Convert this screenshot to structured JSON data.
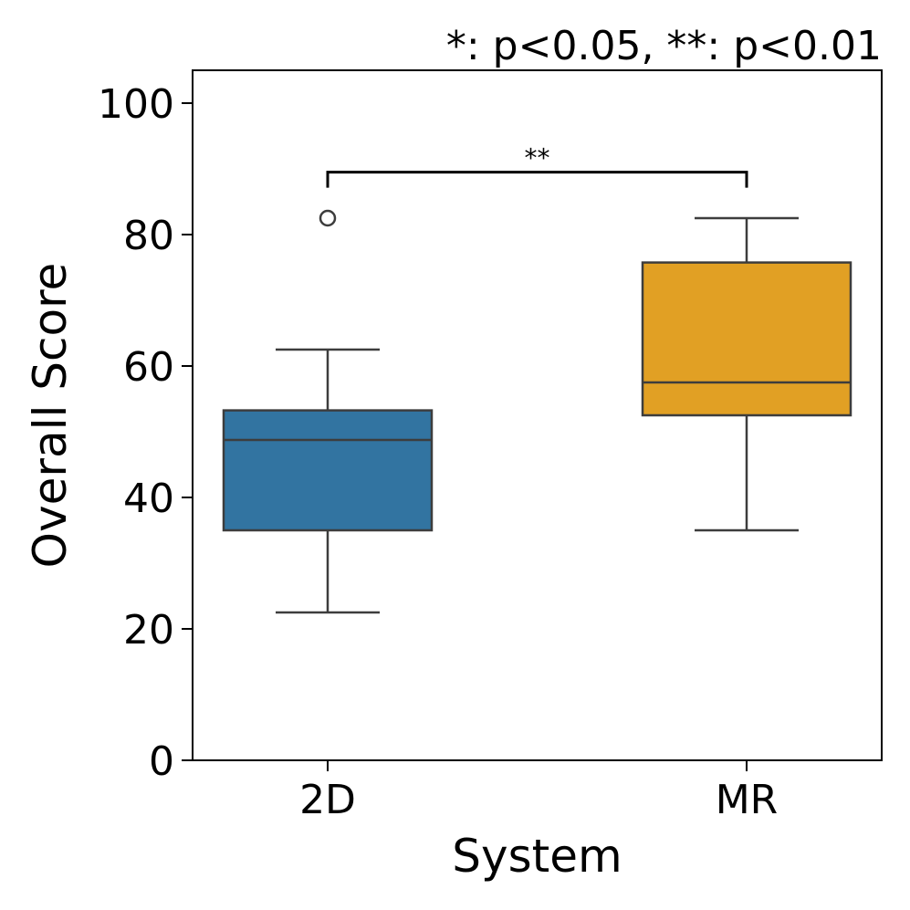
{
  "chart_data": {
    "type": "box",
    "title": "*: p<0.05, **: p<0.01",
    "xlabel": "System",
    "ylabel": "Overall Score",
    "ylim": [
      0,
      105
    ],
    "yticks": [
      0,
      20,
      40,
      60,
      80,
      100
    ],
    "ytick_labels": [
      "0",
      "20",
      "40",
      "60",
      "80",
      "100"
    ],
    "categories": [
      "2D",
      "MR"
    ],
    "boxes": [
      {
        "name": "2D",
        "color": "#3274a1",
        "whisker_low": 22.5,
        "q1": 35,
        "median": 48.75,
        "q3": 53.25,
        "whisker_high": 62.5,
        "outliers": [
          82.5
        ]
      },
      {
        "name": "MR",
        "color": "#e1a024",
        "whisker_low": 35,
        "q1": 52.5,
        "median": 57.5,
        "q3": 75.75,
        "whisker_high": 82.5,
        "outliers": []
      }
    ],
    "significance": [
      {
        "from": "2D",
        "to": "MR",
        "label": "**",
        "y": 89.5
      }
    ]
  }
}
